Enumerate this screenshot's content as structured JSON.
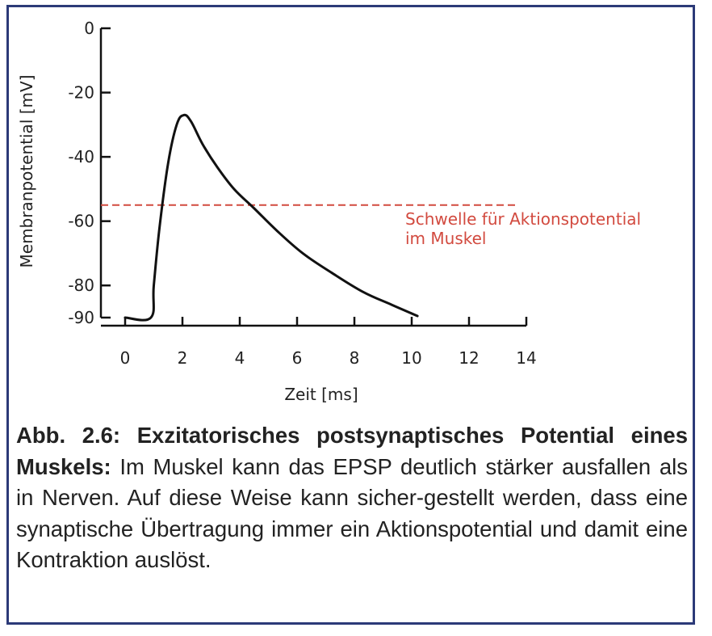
{
  "chart_data": {
    "type": "line",
    "xlabel": "Zeit [ms]",
    "ylabel": "Membranpotential [mV]",
    "xlim": [
      0,
      14
    ],
    "ylim": [
      -90,
      0
    ],
    "x_ticks": [
      0,
      2,
      4,
      6,
      8,
      10,
      12,
      14
    ],
    "x_tick_labels": [
      "0",
      "2",
      "4",
      "6",
      "8",
      "10",
      "12",
      "14"
    ],
    "y_ticks": [
      0,
      -20,
      -40,
      -60,
      -80,
      -90
    ],
    "y_tick_labels": [
      "0",
      "-20",
      "-40",
      "-60",
      "-80",
      "-90"
    ],
    "grid": false,
    "series": [
      {
        "color": "#111111",
        "x": [
          0,
          0.9,
          1.0,
          1.2,
          1.5,
          1.8,
          2.05,
          2.3,
          2.7,
          3.2,
          3.8,
          4.5,
          5.3,
          6.2,
          7.2,
          8.3,
          9.3,
          10.2
        ],
        "y": [
          -90,
          -90,
          -80,
          -62,
          -42,
          -30,
          -27,
          -29,
          -36,
          -43,
          -50,
          -56,
          -63,
          -70,
          -76,
          -82,
          -86,
          -89.5
        ]
      }
    ],
    "annotations": [
      {
        "type": "hline",
        "y": -55,
        "x_start": 0,
        "x_end": 13.7,
        "style": "dashed",
        "color": "#d24a3f",
        "label_lines": [
          "Schwelle für Aktionspotential",
          "im Muskel"
        ]
      }
    ]
  },
  "caption": {
    "bold": "Abb. 2.6: Exzitatorisches postsynaptisches Potential eines Muskels:",
    "text": " Im Muskel kann das EPSP deutlich stärker ausfallen als in Nerven. Auf diese Weise kann sicher-gestellt werden, dass eine synaptische Übertragung immer ein Aktionspotential und damit eine Kontraktion auslöst."
  },
  "colors": {
    "frame": "#2c3a78",
    "threshold": "#d24a3f",
    "curve": "#111111"
  }
}
